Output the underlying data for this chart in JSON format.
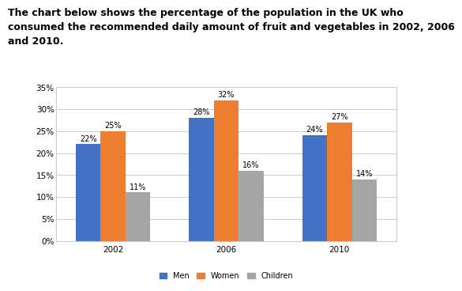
{
  "title_lines": [
    "The chart below shows the percentage of the population in the UK who",
    "consumed the recommended daily amount of fruit and vegetables in 2002, 2006",
    "and 2010."
  ],
  "years": [
    "2002",
    "2006",
    "2010"
  ],
  "categories": [
    "Men",
    "Women",
    "Children"
  ],
  "values": {
    "Men": [
      22,
      28,
      24
    ],
    "Women": [
      25,
      32,
      27
    ],
    "Children": [
      11,
      16,
      14
    ]
  },
  "colors": {
    "Men": "#4472C4",
    "Women": "#ED7D31",
    "Children": "#A5A5A5"
  },
  "ylim": [
    0,
    35
  ],
  "yticks": [
    0,
    5,
    10,
    15,
    20,
    25,
    30,
    35
  ],
  "ytick_labels": [
    "0%",
    "5%",
    "10%",
    "15%",
    "20%",
    "25%",
    "30%",
    "35%"
  ],
  "bar_width": 0.22,
  "label_fontsize": 7,
  "legend_fontsize": 7,
  "axis_fontsize": 7.5,
  "title_fontsize": 9,
  "background_color": "#ffffff",
  "plot_bg_color": "#ffffff",
  "grid_color": "#cccccc"
}
